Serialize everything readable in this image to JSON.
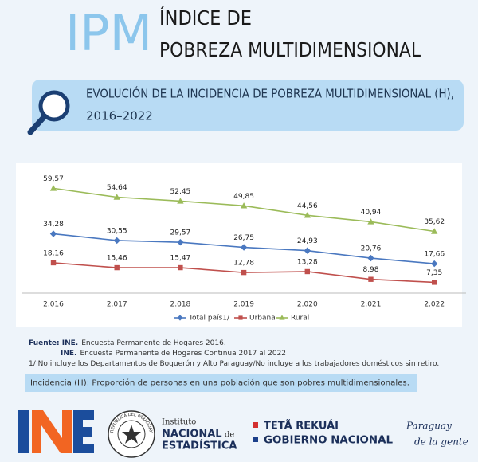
{
  "header": {
    "acronym": "IPM",
    "title_line1": "ÍNDICE DE",
    "title_line2": "POBREZA MULTIDIMENSIONAL"
  },
  "banner": {
    "line1": "EVOLUCIÓN DE LA INCIDENCIA DE POBREZA MULTIDIMENSIONAL (H),",
    "line2": "2016–2022"
  },
  "chart_data": {
    "type": "line",
    "categories": [
      "2.016",
      "2.017",
      "2.018",
      "2.019",
      "2.020",
      "2.021",
      "2.022"
    ],
    "series": [
      {
        "name": "Total país1/",
        "color": "#4a78c0",
        "marker": "diamond",
        "values": [
          34.28,
          30.55,
          29.57,
          26.75,
          24.93,
          20.76,
          17.66
        ],
        "value_labels": [
          "34,28",
          "30,55",
          "29,57",
          "26,75",
          "24,93",
          "20,76",
          "17,66"
        ]
      },
      {
        "name": "Urbana",
        "color": "#c0504d",
        "marker": "square",
        "values": [
          18.16,
          15.46,
          15.47,
          12.78,
          13.28,
          8.98,
          7.35
        ],
        "value_labels": [
          "18,16",
          "15,46",
          "15,47",
          "12,78",
          "13,28",
          "8,98",
          "7,35"
        ]
      },
      {
        "name": "Rural",
        "color": "#9bbb59",
        "marker": "triangle",
        "values": [
          59.57,
          54.64,
          52.45,
          49.85,
          44.56,
          40.94,
          35.62
        ],
        "value_labels": [
          "59,57",
          "54,64",
          "52,45",
          "49,85",
          "44,56",
          "40,94",
          "35,62"
        ]
      }
    ],
    "legend": "bottom"
  },
  "notes": [
    {
      "bold": "Fuente: INE.",
      "text": "Encuesta Permanente de Hogares 2016."
    },
    {
      "bold": "INE.",
      "text": "Encuesta Permanente de Hogares Continua  2017 al  2022"
    },
    {
      "text": "1/ No incluye los Departamentos de Boquerón y Alto Paraguay/No incluye a los trabajadores domésticos sin retiro."
    }
  ],
  "definition": "Incidencia (H): Proporción de personas en una población que son pobres multidimensionales.",
  "footer": {
    "seal": "REPÚBLICA DEL PARAGUAY",
    "ine_line1": "Instituto",
    "ine_line2": "NACIONAL",
    "ine_line2b": "de",
    "ine_line3": "ESTADÍSTICA",
    "gov_line1": "TETÃ REKUÁI",
    "gov_line2": "GOBIERNO NACIONAL",
    "slogan_line1": "Paraguay",
    "slogan_line2": "de la gente"
  }
}
